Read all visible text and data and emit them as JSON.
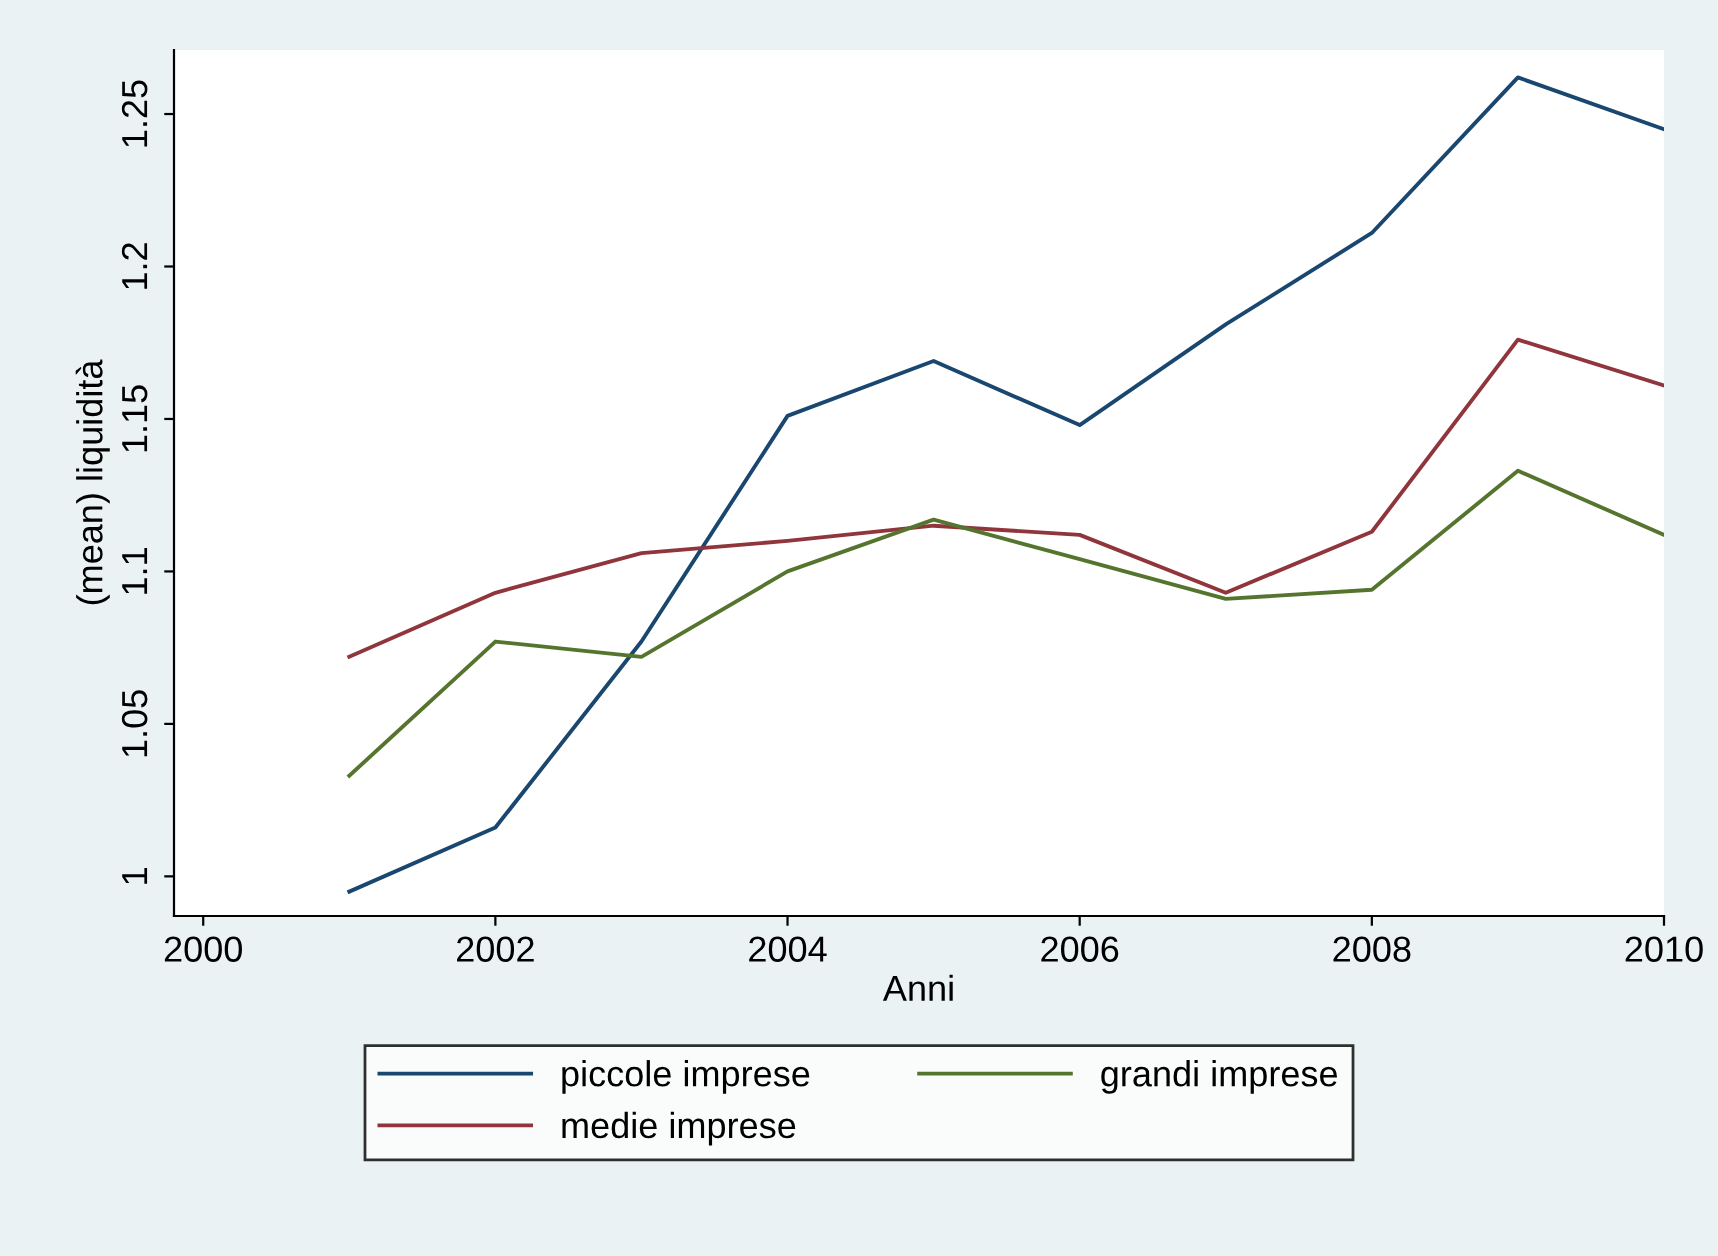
{
  "chart_data": {
    "type": "line",
    "xlabel": "Anni",
    "ylabel": "(mean) liquidità",
    "x": [
      2001,
      2002,
      2003,
      2004,
      2005,
      2006,
      2007,
      2008,
      2009,
      2010
    ],
    "series": [
      {
        "name": "piccole imprese",
        "color": "#1a476f",
        "values": [
          0.995,
          1.016,
          1.077,
          1.151,
          1.169,
          1.148,
          1.181,
          1.211,
          1.262,
          1.245
        ]
      },
      {
        "name": "medie imprese",
        "color": "#90353b",
        "values": [
          1.072,
          1.093,
          1.106,
          1.11,
          1.115,
          1.112,
          1.093,
          1.113,
          1.176,
          1.161
        ]
      },
      {
        "name": "grandi imprese",
        "color": "#55752f",
        "values": [
          1.033,
          1.077,
          1.072,
          1.1,
          1.117,
          1.104,
          1.091,
          1.094,
          1.133,
          1.112
        ]
      }
    ],
    "xlim": [
      1999.8,
      2010
    ],
    "xticks": [
      2000,
      2002,
      2004,
      2006,
      2008,
      2010
    ],
    "ylim": [
      0.987,
      1.271
    ],
    "yticks": [
      1,
      1.05,
      1.1,
      1.15,
      1.2,
      1.25
    ],
    "grid": false,
    "legend": "bottom",
    "marker": "none",
    "line_style": "solid"
  }
}
